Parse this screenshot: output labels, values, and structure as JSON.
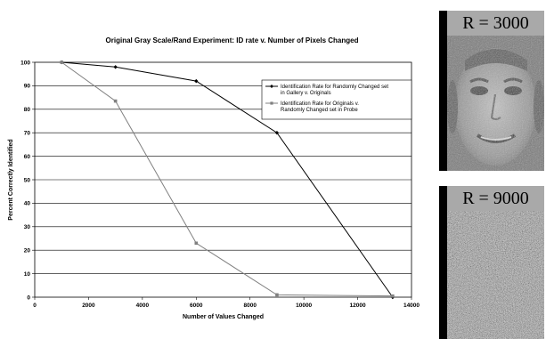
{
  "chart_data": {
    "type": "line",
    "title": "Original Gray Scale/Rand Experiment:  ID rate v. Number of Pixels Changed",
    "xlabel": "Number of Values Changed",
    "ylabel": "Percent Correctly Identified",
    "xlim": [
      0,
      14000
    ],
    "ylim": [
      0,
      100
    ],
    "xticks": [
      0,
      2000,
      4000,
      6000,
      8000,
      10000,
      12000,
      14000
    ],
    "yticks": [
      0,
      10,
      20,
      30,
      40,
      50,
      60,
      70,
      80,
      90,
      100
    ],
    "grid": "horizontal",
    "legend_position": "upper-right-inside",
    "series": [
      {
        "name": "Identification Rate for Randomly Changed set in Gallery v. Originals",
        "color": "#000000",
        "marker": "diamond",
        "x": [
          1000,
          3000,
          6000,
          9000,
          13300
        ],
        "y": [
          100,
          98,
          92,
          70,
          0
        ]
      },
      {
        "name": "Identification Rate for Originals v. Randomly Changed set in Probe",
        "color": "#808080",
        "marker": "square",
        "x": [
          1000,
          3000,
          6000,
          9000,
          13300
        ],
        "y": [
          100,
          83.5,
          23,
          1,
          0.5
        ]
      }
    ]
  },
  "panels": [
    {
      "label": "R = 3000",
      "noise": "low",
      "shows": "face"
    },
    {
      "label": "R = 9000",
      "noise": "high",
      "shows": "noise"
    }
  ]
}
